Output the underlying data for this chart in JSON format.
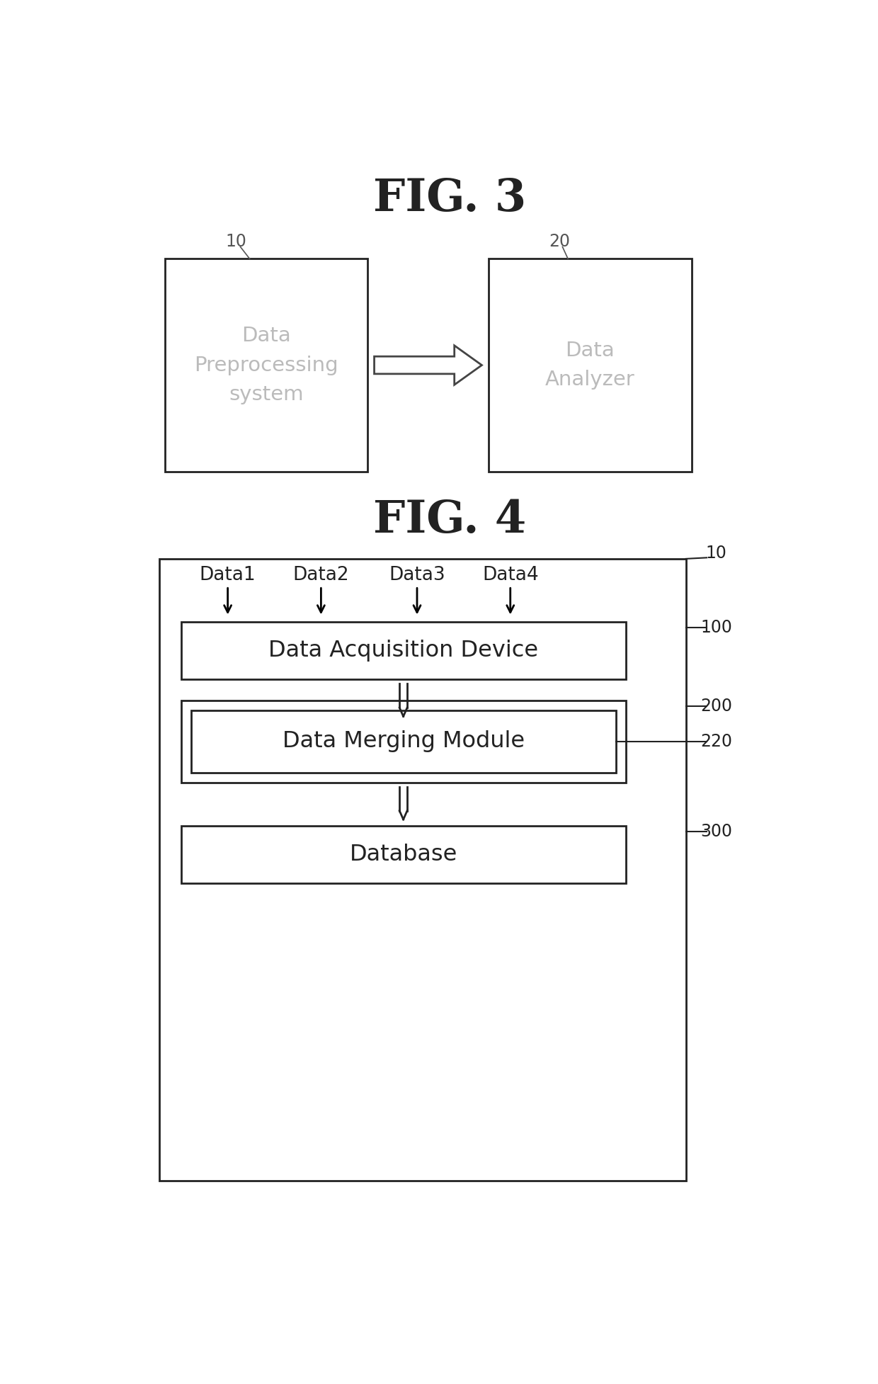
{
  "fig3_title": "FIG. 3",
  "fig4_title": "FIG. 4",
  "bg_color": "#ffffff",
  "box_color": "#ffffff",
  "box_edge_color": "#222222",
  "text_color": "#222222",
  "label_color": "#555555",
  "fig3": {
    "box1_label": "10",
    "box1_text": "Data\nPreprocessing\nsystem",
    "box2_label": "20",
    "box2_text": "Data\nAnalyzer"
  },
  "fig4": {
    "outer_label": "10",
    "data_labels": [
      "Data1",
      "Data2",
      "Data3",
      "Data4"
    ],
    "box1_label": "100",
    "box1_text": "Data Acquisition Device",
    "box2_outer_label": "200",
    "box2_inner_label": "220",
    "box2_text": "Data Merging Module",
    "box3_label": "300",
    "box3_text": "Database"
  }
}
